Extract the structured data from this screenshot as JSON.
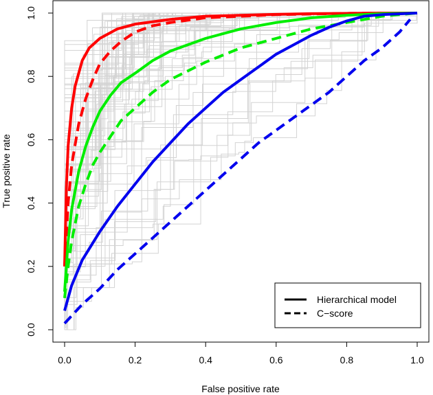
{
  "chart_data": {
    "type": "line",
    "title": "",
    "xlabel": "False positive rate",
    "ylabel": "True positive rate",
    "xlim": [
      0,
      1
    ],
    "ylim": [
      0,
      1
    ],
    "x_ticks": [
      "0.0",
      "0.2",
      "0.4",
      "0.6",
      "0.8",
      "1.0"
    ],
    "y_ticks": [
      "0.0",
      "0.2",
      "0.4",
      "0.6",
      "0.8",
      "1.0"
    ],
    "grid": false,
    "legend": {
      "position": "bottom-right",
      "entries": [
        {
          "label": "Hierarchical model",
          "style": "solid"
        },
        {
          "label": "C−score",
          "style": "dashed"
        }
      ]
    },
    "background_curves": {
      "description_color": "#d3d3d3",
      "style": "step",
      "note": "many individual grey ROC step curves"
    },
    "series": [
      {
        "color": "#ff0000",
        "style": "solid",
        "x": [
          0,
          0.005,
          0.01,
          0.02,
          0.03,
          0.05,
          0.07,
          0.1,
          0.15,
          0.2,
          0.3,
          0.4,
          0.5,
          0.6,
          0.7,
          0.8,
          0.9,
          1.0
        ],
        "y": [
          0.2,
          0.45,
          0.58,
          0.7,
          0.77,
          0.85,
          0.89,
          0.92,
          0.95,
          0.965,
          0.98,
          0.99,
          0.993,
          0.996,
          0.998,
          0.999,
          1.0,
          1.0
        ]
      },
      {
        "color": "#ff0000",
        "style": "dashed",
        "x": [
          0,
          0.01,
          0.02,
          0.04,
          0.06,
          0.08,
          0.1,
          0.13,
          0.16,
          0.2,
          0.25,
          0.3,
          0.4,
          0.5,
          0.6,
          0.7,
          0.8,
          0.9,
          1.0
        ],
        "y": [
          0.2,
          0.4,
          0.52,
          0.65,
          0.73,
          0.79,
          0.84,
          0.88,
          0.91,
          0.94,
          0.96,
          0.97,
          0.985,
          0.99,
          0.995,
          0.997,
          0.999,
          1.0,
          1.0
        ]
      },
      {
        "color": "#00ee00",
        "style": "solid",
        "x": [
          0,
          0.01,
          0.02,
          0.04,
          0.06,
          0.08,
          0.1,
          0.13,
          0.16,
          0.2,
          0.25,
          0.3,
          0.4,
          0.5,
          0.6,
          0.7,
          0.8,
          0.9,
          1.0
        ],
        "y": [
          0.12,
          0.28,
          0.38,
          0.5,
          0.58,
          0.64,
          0.69,
          0.74,
          0.78,
          0.81,
          0.85,
          0.88,
          0.92,
          0.95,
          0.97,
          0.985,
          0.993,
          0.998,
          1.0
        ]
      },
      {
        "color": "#00ee00",
        "style": "dashed",
        "x": [
          0,
          0.01,
          0.02,
          0.04,
          0.06,
          0.08,
          0.1,
          0.13,
          0.16,
          0.2,
          0.25,
          0.3,
          0.4,
          0.5,
          0.6,
          0.7,
          0.8,
          0.9,
          1.0
        ],
        "y": [
          0.1,
          0.2,
          0.28,
          0.39,
          0.46,
          0.52,
          0.56,
          0.61,
          0.66,
          0.7,
          0.75,
          0.79,
          0.845,
          0.89,
          0.92,
          0.95,
          0.97,
          0.99,
          1.0
        ]
      },
      {
        "color": "#0000ee",
        "style": "solid",
        "x": [
          0,
          0.02,
          0.05,
          0.1,
          0.15,
          0.2,
          0.25,
          0.3,
          0.35,
          0.4,
          0.45,
          0.5,
          0.55,
          0.6,
          0.65,
          0.7,
          0.75,
          0.8,
          0.85,
          0.9,
          1.0
        ],
        "y": [
          0.06,
          0.14,
          0.22,
          0.31,
          0.39,
          0.46,
          0.53,
          0.59,
          0.65,
          0.7,
          0.75,
          0.79,
          0.83,
          0.87,
          0.9,
          0.93,
          0.955,
          0.975,
          0.99,
          0.995,
          1.0
        ]
      },
      {
        "color": "#0000ee",
        "style": "dashed",
        "x": [
          0,
          0.05,
          0.1,
          0.15,
          0.2,
          0.25,
          0.3,
          0.35,
          0.4,
          0.45,
          0.5,
          0.55,
          0.6,
          0.65,
          0.7,
          0.75,
          0.8,
          0.85,
          0.9,
          0.95,
          0.98
        ],
        "y": [
          0.02,
          0.08,
          0.13,
          0.19,
          0.24,
          0.29,
          0.34,
          0.39,
          0.44,
          0.49,
          0.54,
          0.59,
          0.63,
          0.67,
          0.71,
          0.75,
          0.8,
          0.85,
          0.89,
          0.94,
          0.98
        ]
      }
    ]
  }
}
